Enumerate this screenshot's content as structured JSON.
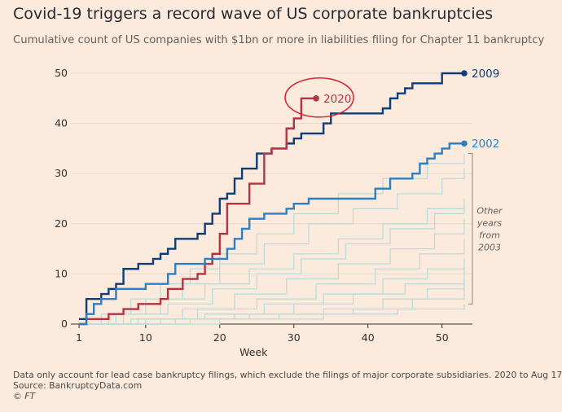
{
  "title": "Covid-19 triggers a record wave of US corporate bankruptcies",
  "subtitle": "Cumulative count of US companies with $1bn or more in liabilities filing for Chapter 11 bankruptcy",
  "footer": {
    "note": "Data only account for lead case bankruptcy filings, which exclude the filings of major corporate subsidiaries. 2020 to Aug 17",
    "source": "Source: BankruptcyData.com",
    "copyright": "© FT"
  },
  "chart_data": {
    "type": "line",
    "line_shape": "step",
    "xlabel": "Week",
    "ylabel": "",
    "xlim": [
      1,
      53
    ],
    "ylim": [
      0,
      50
    ],
    "x_ticks": [
      1,
      10,
      20,
      30,
      40,
      50
    ],
    "y_ticks": [
      0,
      10,
      20,
      30,
      40,
      50
    ],
    "grid": true,
    "series": [
      {
        "name": "2009",
        "color": "#0f3d7a",
        "highlight": true,
        "end_marker": true,
        "points": [
          [
            1,
            1
          ],
          [
            2,
            5
          ],
          [
            4,
            6
          ],
          [
            5,
            7
          ],
          [
            6,
            8
          ],
          [
            7,
            11
          ],
          [
            9,
            12
          ],
          [
            11,
            13
          ],
          [
            12,
            14
          ],
          [
            13,
            15
          ],
          [
            14,
            17
          ],
          [
            17,
            18
          ],
          [
            18,
            20
          ],
          [
            19,
            22
          ],
          [
            20,
            25
          ],
          [
            21,
            26
          ],
          [
            22,
            29
          ],
          [
            23,
            31
          ],
          [
            25,
            34
          ],
          [
            27,
            35
          ],
          [
            29,
            36
          ],
          [
            30,
            37
          ],
          [
            31,
            38
          ],
          [
            34,
            40
          ],
          [
            35,
            42
          ],
          [
            42,
            43
          ],
          [
            43,
            45
          ],
          [
            44,
            46
          ],
          [
            45,
            47
          ],
          [
            46,
            48
          ],
          [
            50,
            50
          ],
          [
            53,
            50
          ]
        ]
      },
      {
        "name": "2020",
        "color": "#b53344",
        "highlight": true,
        "end_marker": true,
        "circled": true,
        "points": [
          [
            1,
            0
          ],
          [
            2,
            1
          ],
          [
            5,
            2
          ],
          [
            7,
            3
          ],
          [
            9,
            4
          ],
          [
            12,
            5
          ],
          [
            13,
            7
          ],
          [
            15,
            9
          ],
          [
            17,
            10
          ],
          [
            18,
            12
          ],
          [
            19,
            14
          ],
          [
            20,
            18
          ],
          [
            21,
            24
          ],
          [
            24,
            28
          ],
          [
            26,
            34
          ],
          [
            27,
            35
          ],
          [
            29,
            39
          ],
          [
            30,
            41
          ],
          [
            31,
            45
          ],
          [
            33,
            45
          ]
        ]
      },
      {
        "name": "2002",
        "color": "#2d7fc4",
        "highlight": true,
        "end_marker": true,
        "points": [
          [
            1,
            0
          ],
          [
            2,
            2
          ],
          [
            3,
            4
          ],
          [
            4,
            5
          ],
          [
            6,
            7
          ],
          [
            10,
            8
          ],
          [
            13,
            10
          ],
          [
            14,
            12
          ],
          [
            18,
            13
          ],
          [
            21,
            15
          ],
          [
            22,
            17
          ],
          [
            23,
            19
          ],
          [
            24,
            21
          ],
          [
            26,
            22
          ],
          [
            29,
            23
          ],
          [
            30,
            24
          ],
          [
            32,
            25
          ],
          [
            41,
            27
          ],
          [
            43,
            29
          ],
          [
            46,
            30
          ],
          [
            47,
            32
          ],
          [
            48,
            33
          ],
          [
            49,
            34
          ],
          [
            50,
            35
          ],
          [
            51,
            36
          ],
          [
            53,
            36
          ]
        ]
      },
      {
        "name": "",
        "group": "other",
        "points": [
          [
            1,
            0
          ],
          [
            4,
            2
          ],
          [
            8,
            5
          ],
          [
            12,
            8
          ],
          [
            16,
            11
          ],
          [
            20,
            14
          ],
          [
            25,
            18
          ],
          [
            30,
            22
          ],
          [
            36,
            26
          ],
          [
            42,
            29
          ],
          [
            48,
            32
          ],
          [
            53,
            34
          ]
        ]
      },
      {
        "name": "",
        "group": "other",
        "points": [
          [
            1,
            0
          ],
          [
            5,
            2
          ],
          [
            10,
            5
          ],
          [
            15,
            8
          ],
          [
            20,
            12
          ],
          [
            26,
            16
          ],
          [
            32,
            20
          ],
          [
            38,
            23
          ],
          [
            44,
            26
          ],
          [
            50,
            29
          ],
          [
            53,
            31
          ]
        ]
      },
      {
        "name": "",
        "group": "other",
        "points": [
          [
            1,
            0
          ],
          [
            6,
            2
          ],
          [
            12,
            5
          ],
          [
            18,
            8
          ],
          [
            24,
            11
          ],
          [
            30,
            14
          ],
          [
            36,
            17
          ],
          [
            42,
            20
          ],
          [
            48,
            23
          ],
          [
            53,
            25
          ]
        ]
      },
      {
        "name": "",
        "group": "other",
        "points": [
          [
            1,
            0
          ],
          [
            7,
            2
          ],
          [
            13,
            4
          ],
          [
            19,
            7
          ],
          [
            25,
            10
          ],
          [
            31,
            13
          ],
          [
            37,
            16
          ],
          [
            43,
            19
          ],
          [
            49,
            22
          ],
          [
            53,
            24
          ]
        ]
      },
      {
        "name": "",
        "group": "other",
        "points": [
          [
            1,
            0
          ],
          [
            8,
            1
          ],
          [
            15,
            3
          ],
          [
            22,
            6
          ],
          [
            29,
            9
          ],
          [
            36,
            12
          ],
          [
            43,
            15
          ],
          [
            49,
            18
          ],
          [
            53,
            21
          ]
        ]
      },
      {
        "name": "",
        "group": "other",
        "points": [
          [
            1,
            0
          ],
          [
            9,
            1
          ],
          [
            17,
            3
          ],
          [
            25,
            5
          ],
          [
            33,
            8
          ],
          [
            41,
            11
          ],
          [
            47,
            14
          ],
          [
            53,
            17
          ]
        ]
      },
      {
        "name": "",
        "group": "other",
        "points": [
          [
            1,
            0
          ],
          [
            10,
            1
          ],
          [
            18,
            2
          ],
          [
            26,
            4
          ],
          [
            34,
            6
          ],
          [
            42,
            9
          ],
          [
            48,
            11
          ],
          [
            53,
            13
          ]
        ]
      },
      {
        "name": "",
        "group": "other",
        "points": [
          [
            1,
            0
          ],
          [
            12,
            1
          ],
          [
            22,
            2
          ],
          [
            30,
            4
          ],
          [
            38,
            6
          ],
          [
            45,
            8
          ],
          [
            53,
            11
          ]
        ]
      },
      {
        "name": "",
        "group": "other",
        "points": [
          [
            1,
            0
          ],
          [
            14,
            1
          ],
          [
            24,
            2
          ],
          [
            34,
            3
          ],
          [
            42,
            5
          ],
          [
            48,
            7
          ],
          [
            53,
            9
          ]
        ]
      },
      {
        "name": "",
        "group": "other",
        "points": [
          [
            1,
            0
          ],
          [
            16,
            1
          ],
          [
            28,
            2
          ],
          [
            38,
            3
          ],
          [
            46,
            5
          ],
          [
            53,
            8
          ]
        ]
      },
      {
        "name": "",
        "group": "other",
        "points": [
          [
            1,
            0
          ],
          [
            20,
            1
          ],
          [
            34,
            2
          ],
          [
            44,
            3
          ],
          [
            53,
            4
          ]
        ]
      }
    ],
    "annotations": [
      {
        "text": "Other\nyears\nfrom\n2003",
        "bracket_y": [
          4,
          34
        ]
      }
    ]
  },
  "style": {
    "background": "#fcebdc",
    "grid_color": "#e6d9ce",
    "axis_color": "#33302e",
    "other_line_color": "#b8dcdc",
    "circle_color": "#d8202e"
  }
}
